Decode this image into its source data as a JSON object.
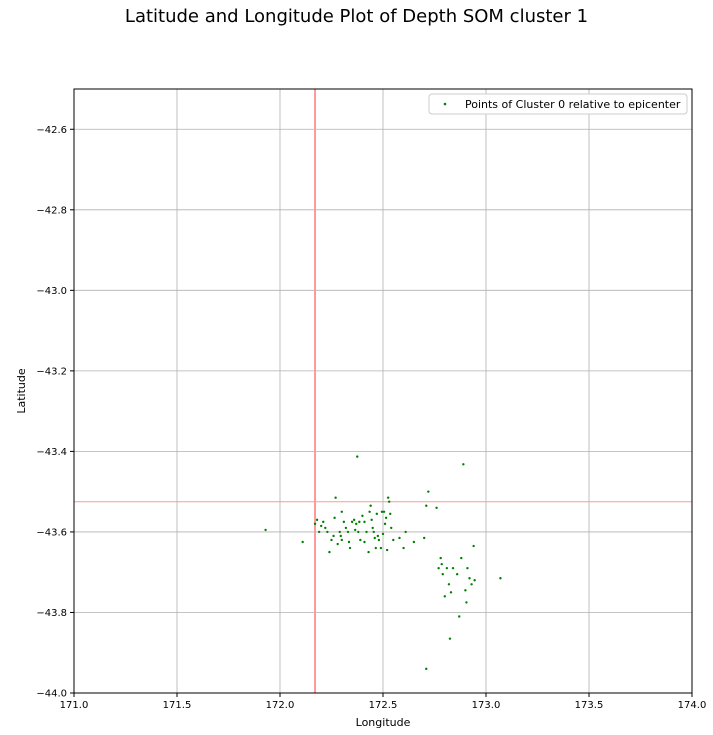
{
  "chart_data": {
    "type": "scatter",
    "title": "Latitude and Longitude Plot of Depth SOM cluster 1",
    "xlabel": "Longitude",
    "ylabel": "Latitude",
    "xlim": [
      171.0,
      174.0
    ],
    "ylim": [
      -44.0,
      -42.5
    ],
    "xticks": [
      "171.0",
      "171.5",
      "172.0",
      "172.5",
      "173.0",
      "173.5",
      "174.0"
    ],
    "yticks": [
      "−42.6",
      "−42.8",
      "−43.0",
      "−43.2",
      "−43.4",
      "−43.6",
      "−43.8",
      "−44.0"
    ],
    "grid": true,
    "legend_position": "top-right",
    "reference_lines": {
      "vertical_x": 172.17,
      "horizontal_y": -43.525,
      "color": "#ff9999"
    },
    "series": [
      {
        "name": "Points of Cluster 0 relative to epicenter",
        "color": "#008000",
        "points": [
          [
            171.93,
            -43.595
          ],
          [
            172.11,
            -43.625
          ],
          [
            172.17,
            -43.58
          ],
          [
            172.18,
            -43.57
          ],
          [
            172.19,
            -43.6
          ],
          [
            172.2,
            -43.585
          ],
          [
            172.21,
            -43.575
          ],
          [
            172.22,
            -43.59
          ],
          [
            172.23,
            -43.6
          ],
          [
            172.24,
            -43.65
          ],
          [
            172.25,
            -43.62
          ],
          [
            172.26,
            -43.61
          ],
          [
            172.265,
            -43.565
          ],
          [
            172.27,
            -43.515
          ],
          [
            172.28,
            -43.63
          ],
          [
            172.29,
            -43.6
          ],
          [
            172.3,
            -43.62
          ],
          [
            172.31,
            -43.575
          ],
          [
            172.32,
            -43.59
          ],
          [
            172.33,
            -43.6
          ],
          [
            172.34,
            -43.64
          ],
          [
            172.35,
            -43.575
          ],
          [
            172.36,
            -43.57
          ],
          [
            172.37,
            -43.58
          ],
          [
            172.375,
            -43.413
          ],
          [
            172.38,
            -43.6
          ],
          [
            172.385,
            -43.575
          ],
          [
            172.39,
            -43.62
          ],
          [
            172.4,
            -43.56
          ],
          [
            172.41,
            -43.575
          ],
          [
            172.42,
            -43.6
          ],
          [
            172.43,
            -43.65
          ],
          [
            172.435,
            -43.55
          ],
          [
            172.44,
            -43.535
          ],
          [
            172.45,
            -43.59
          ],
          [
            172.46,
            -43.615
          ],
          [
            172.465,
            -43.64
          ],
          [
            172.47,
            -43.555
          ],
          [
            172.48,
            -43.62
          ],
          [
            172.49,
            -43.64
          ],
          [
            172.495,
            -43.55
          ],
          [
            172.5,
            -43.605
          ],
          [
            172.51,
            -43.58
          ],
          [
            172.515,
            -43.565
          ],
          [
            172.52,
            -43.645
          ],
          [
            172.525,
            -43.515
          ],
          [
            172.53,
            -43.525
          ],
          [
            172.54,
            -43.59
          ],
          [
            172.55,
            -43.62
          ],
          [
            172.58,
            -43.615
          ],
          [
            172.6,
            -43.64
          ],
          [
            172.61,
            -43.6
          ],
          [
            172.65,
            -43.625
          ],
          [
            172.7,
            -43.615
          ],
          [
            172.71,
            -43.535
          ],
          [
            172.72,
            -43.5
          ],
          [
            172.76,
            -43.54
          ],
          [
            172.77,
            -43.69
          ],
          [
            172.78,
            -43.665
          ],
          [
            172.785,
            -43.68
          ],
          [
            172.79,
            -43.705
          ],
          [
            172.8,
            -43.76
          ],
          [
            172.81,
            -43.69
          ],
          [
            172.82,
            -43.73
          ],
          [
            172.825,
            -43.865
          ],
          [
            172.83,
            -43.75
          ],
          [
            172.84,
            -43.69
          ],
          [
            172.86,
            -43.705
          ],
          [
            172.87,
            -43.81
          ],
          [
            172.88,
            -43.665
          ],
          [
            172.89,
            -43.432
          ],
          [
            172.9,
            -43.745
          ],
          [
            172.905,
            -43.775
          ],
          [
            172.91,
            -43.69
          ],
          [
            172.92,
            -43.715
          ],
          [
            172.93,
            -43.73
          ],
          [
            172.94,
            -43.635
          ],
          [
            172.945,
            -43.72
          ],
          [
            173.07,
            -43.715
          ],
          [
            172.71,
            -43.94
          ],
          [
            172.445,
            -43.57
          ],
          [
            172.475,
            -43.61
          ],
          [
            172.365,
            -43.595
          ],
          [
            172.335,
            -43.625
          ],
          [
            172.3,
            -43.55
          ],
          [
            172.295,
            -43.61
          ],
          [
            172.41,
            -43.625
          ],
          [
            172.455,
            -43.6
          ],
          [
            172.505,
            -43.55
          ],
          [
            172.535,
            -43.555
          ]
        ]
      }
    ]
  }
}
